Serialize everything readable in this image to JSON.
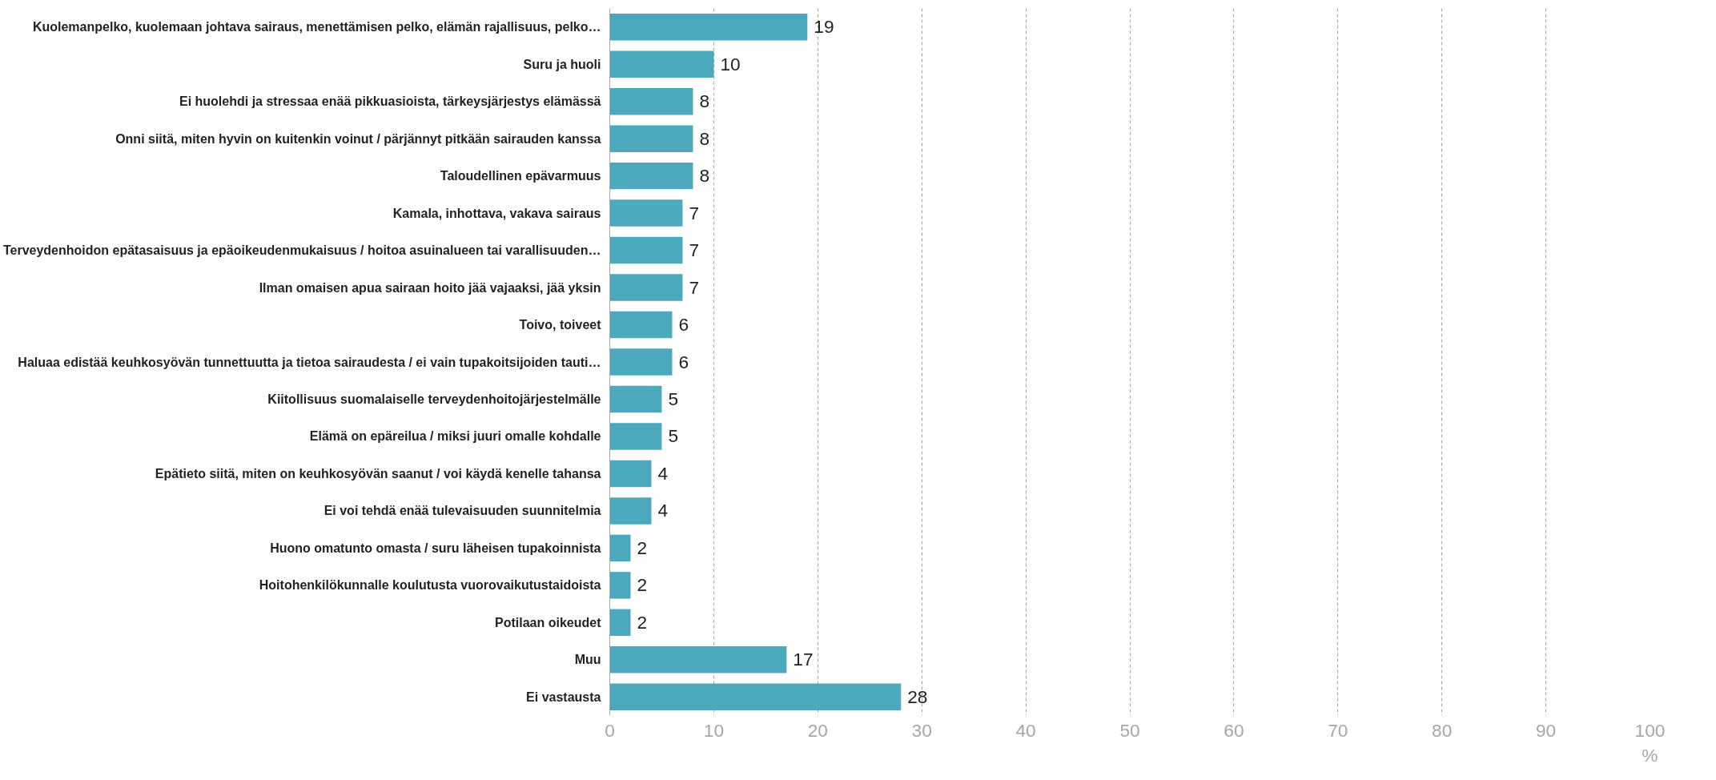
{
  "chart_data": {
    "type": "bar",
    "orientation": "horizontal",
    "xlabel": "%",
    "categories": [
      "Kuolemanpelko, kuolemaan johtava sairaus, menettämisen pelko, elämän rajallisuus, pelko…",
      "Suru ja huoli",
      "Ei huolehdi ja stressaa enää pikkuasioista, tärkeysjärjestys elämässä",
      "Onni siitä, miten hyvin on kuitenkin voinut / pärjännyt pitkään sairauden kanssa",
      "Taloudellinen epävarmuus",
      "Kamala, inhottava, vakava sairaus",
      "Terveydenhoidon epätasaisuus ja epäoikeudenmukaisuus / hoitoa asuinalueen tai varallisuuden…",
      "Ilman omaisen apua sairaan hoito jää vajaaksi, jää yksin",
      "Toivo, toiveet",
      "Haluaa edistää keuhkosyövän tunnettuutta ja tietoa sairaudesta / ei vain tupakoitsijoiden tauti…",
      "Kiitollisuus suomalaiselle terveydenhoitojärjestelmälle",
      "Elämä on epäreilua / miksi juuri omalle kohdalle",
      "Epätieto siitä, miten on keuhkosyövän saanut / voi käydä kenelle tahansa",
      "Ei voi tehdä enää tulevaisuuden suunnitelmia",
      "Huono omatunto omasta / suru läheisen tupakoinnista",
      "Hoitohenkilökunnalle koulutusta vuorovaikutustaidoista",
      "Potilaan oikeudet",
      "Muu",
      "Ei vastausta"
    ],
    "values": [
      19,
      10,
      8,
      8,
      8,
      7,
      7,
      7,
      6,
      6,
      5,
      5,
      4,
      4,
      2,
      2,
      2,
      17,
      28
    ],
    "color": "#4ba8bd",
    "data_labels": true,
    "xlim": [
      0,
      100
    ],
    "xticks": [
      0,
      10,
      20,
      30,
      40,
      50,
      60,
      70,
      80,
      90,
      100
    ],
    "grid": "x"
  }
}
